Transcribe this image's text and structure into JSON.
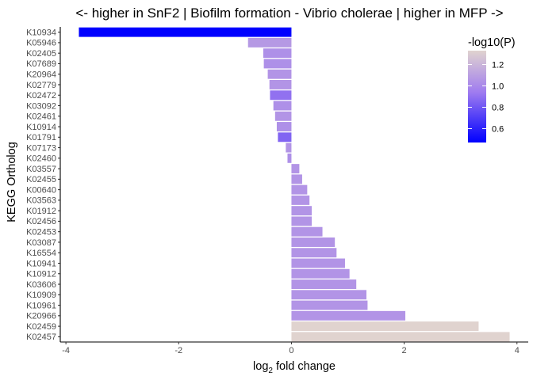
{
  "chart_data": {
    "type": "bar",
    "orientation": "horizontal",
    "title": "<- higher in SnF2 | Biofilm formation - Vibrio cholerae | higher in MFP ->",
    "xlabel_base": "log",
    "xlabel_sub": "2",
    "xlabel_rest": " fold change",
    "ylabel": "KEGG Ortholog",
    "xlim": [
      -4.1,
      4.2
    ],
    "xticks": [
      -4,
      -2,
      0,
      2,
      4
    ],
    "xtick_labels": [
      "-4",
      "-2",
      "0",
      "2",
      "4"
    ],
    "grid": false,
    "legend_position": "top-right",
    "legend": {
      "title": "-log10(P)",
      "range": [
        0.47,
        1.33
      ],
      "ticks": [
        1.2,
        1.0,
        0.8,
        0.6
      ],
      "tick_labels": [
        "1.2",
        "1.0",
        "0.8",
        "0.6"
      ],
      "color_low": "#0000FF",
      "color_mid": "#A07CEF",
      "color_high": "#E0D3CF"
    },
    "categories": [
      "K10934",
      "K05946",
      "K02405",
      "K07689",
      "K20964",
      "K02779",
      "K02472",
      "K03092",
      "K02461",
      "K10914",
      "K01791",
      "K07173",
      "K02460",
      "K03557",
      "K02455",
      "K00640",
      "K03563",
      "K01912",
      "K02456",
      "K02453",
      "K03087",
      "K16554",
      "K10941",
      "K10912",
      "K03606",
      "K10909",
      "K10961",
      "K20966",
      "K02459",
      "K02457"
    ],
    "values": [
      -3.77,
      -0.77,
      -0.5,
      -0.49,
      -0.42,
      -0.39,
      -0.38,
      -0.32,
      -0.29,
      -0.26,
      -0.24,
      -0.1,
      -0.07,
      0.14,
      0.19,
      0.28,
      0.32,
      0.36,
      0.36,
      0.55,
      0.77,
      0.8,
      0.95,
      1.03,
      1.15,
      1.33,
      1.35,
      2.02,
      3.32,
      3.87
    ],
    "neg_log10_p": [
      0.47,
      1.07,
      1.03,
      1.03,
      1.05,
      1.05,
      0.9,
      1.03,
      1.05,
      1.03,
      0.85,
      1.05,
      1.03,
      1.05,
      1.05,
      1.05,
      1.05,
      1.05,
      1.05,
      1.05,
      1.05,
      1.05,
      1.05,
      1.05,
      1.05,
      1.05,
      1.05,
      1.05,
      1.33,
      1.33
    ]
  }
}
